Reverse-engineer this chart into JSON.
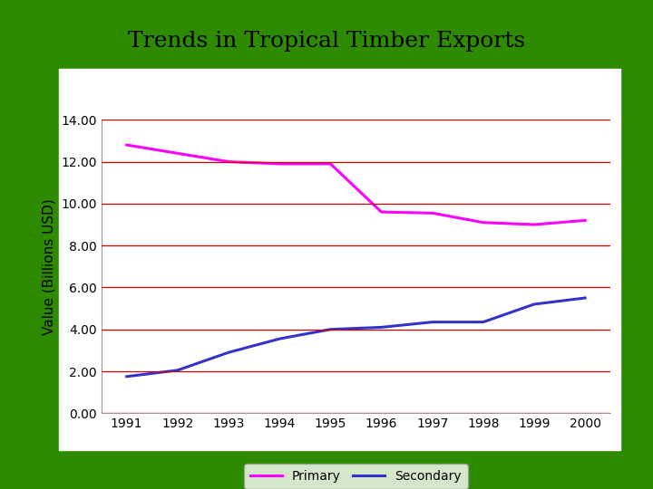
{
  "title": "Trends in Tropical Timber Exports",
  "years": [
    1991,
    1992,
    1993,
    1994,
    1995,
    1996,
    1997,
    1998,
    1999,
    2000
  ],
  "primary": [
    12.8,
    12.4,
    12.0,
    11.9,
    11.9,
    9.6,
    9.55,
    9.1,
    9.0,
    9.2
  ],
  "secondary": [
    1.75,
    2.05,
    2.9,
    3.55,
    4.0,
    4.1,
    4.35,
    4.35,
    5.2,
    5.5
  ],
  "primary_color": "#FF00FF",
  "secondary_color": "#3333CC",
  "grid_color": "#CC0000",
  "background_outer": "#2E8B00",
  "background_inner": "#FFFFFF",
  "ylabel": "Value (Billions USD)",
  "ylim": [
    0,
    14.0
  ],
  "yticks": [
    0.0,
    2.0,
    4.0,
    6.0,
    8.0,
    10.0,
    12.0,
    14.0
  ],
  "title_fontsize": 18,
  "axis_fontsize": 11,
  "tick_fontsize": 10,
  "legend_labels": [
    "Primary",
    "Secondary"
  ],
  "line_width": 2.2
}
